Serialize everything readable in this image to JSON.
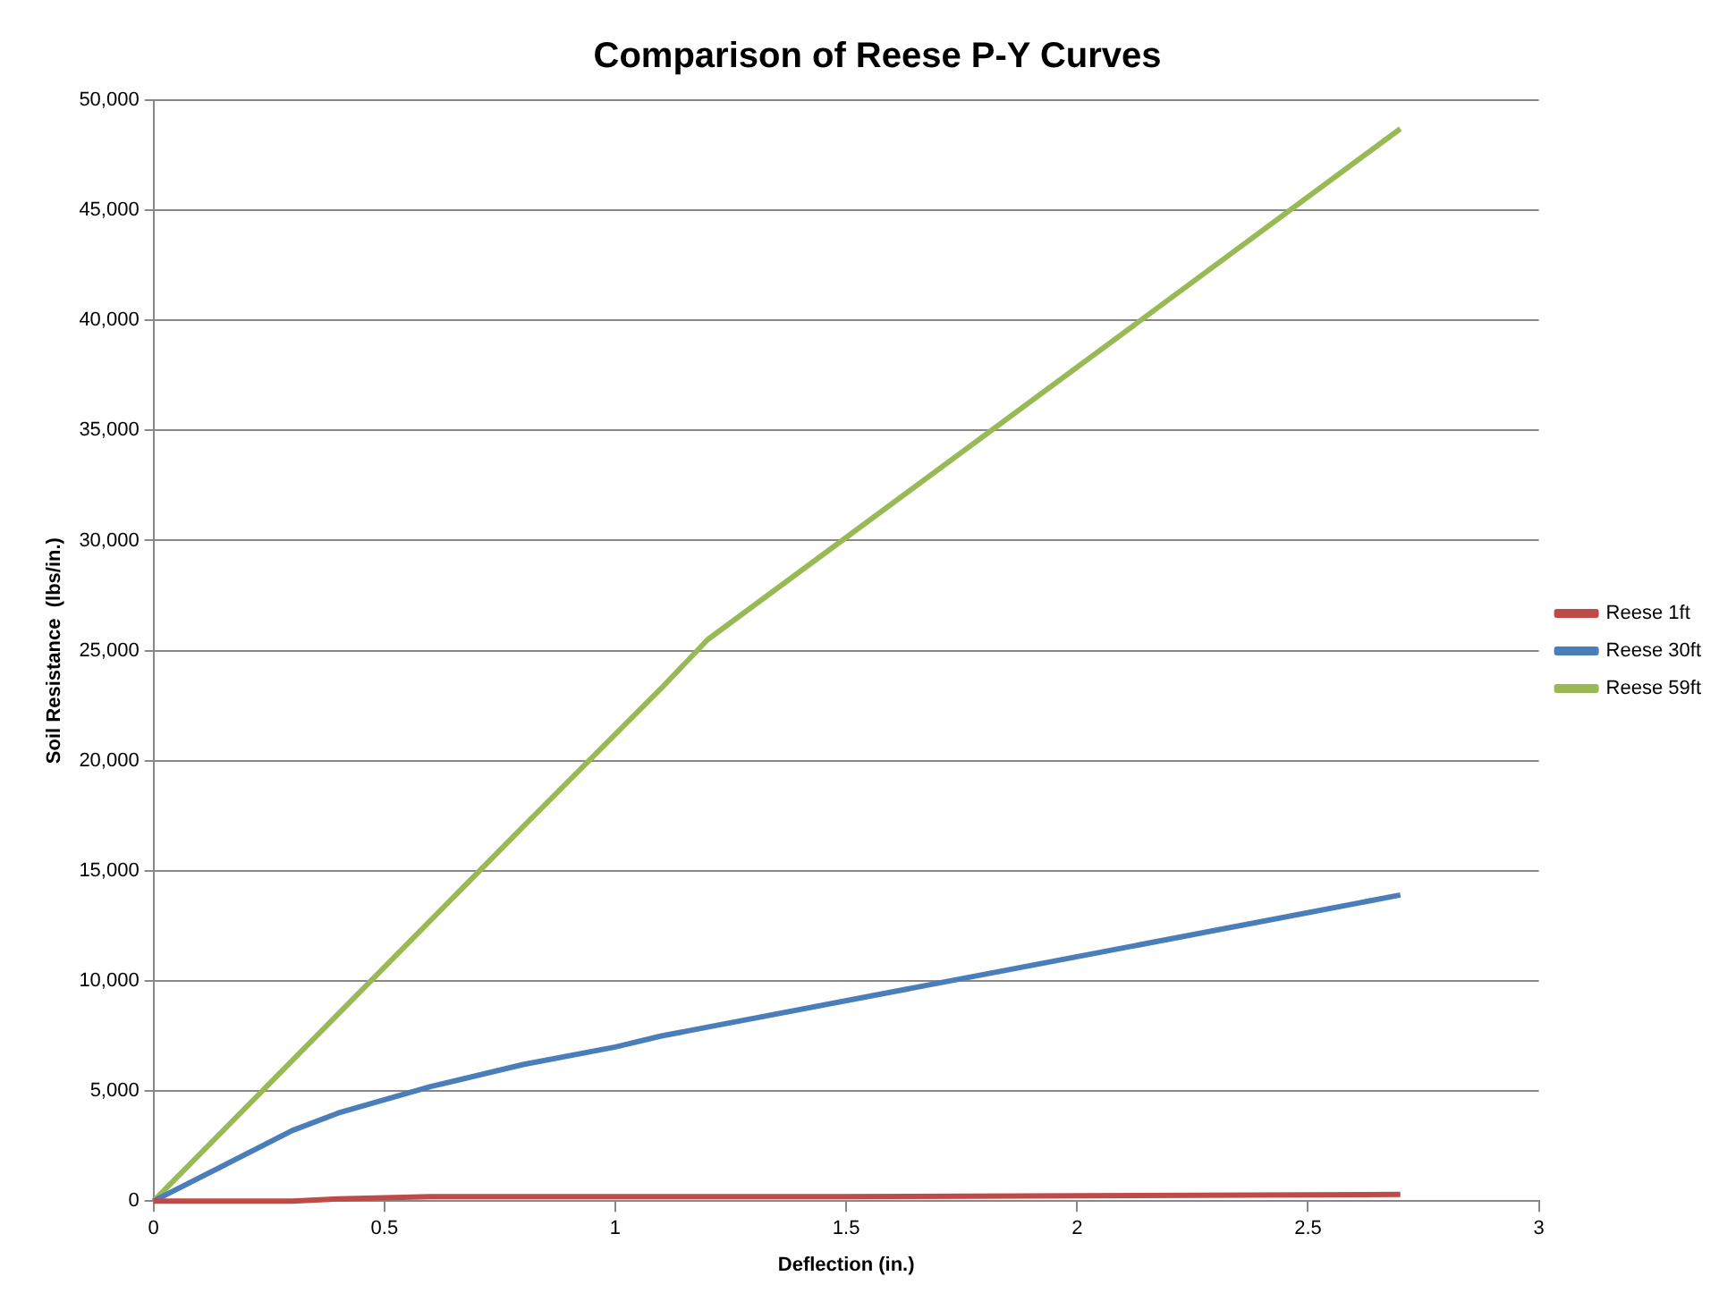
{
  "chart_data": {
    "type": "line",
    "title": "Comparison of Reese P-Y Curves",
    "xlabel": "Deflection (in.)",
    "ylabel": "Soil Resistance  (lbs/in.)",
    "xlim": [
      0,
      3
    ],
    "xticks": [
      0,
      0.5,
      1,
      1.5,
      2,
      2.5,
      3
    ],
    "ylim": [
      0,
      50000
    ],
    "yticks": [
      {
        "value": 0,
        "label": "0"
      },
      {
        "value": 5000,
        "label": "5,000"
      },
      {
        "value": 10000,
        "label": "10,000"
      },
      {
        "value": 15000,
        "label": "15,000"
      },
      {
        "value": 20000,
        "label": "20,000"
      },
      {
        "value": 25000,
        "label": "25,000"
      },
      {
        "value": 30000,
        "label": "30,000"
      },
      {
        "value": 35000,
        "label": "35,000"
      },
      {
        "value": 40000,
        "label": "40,000"
      },
      {
        "value": 45000,
        "label": "45,000"
      },
      {
        "value": 50000,
        "label": "50,000"
      }
    ],
    "grid": "y",
    "legend": "right",
    "marker": "none",
    "series": [
      {
        "name": "Reese 1ft",
        "color": "#be4b48",
        "x": [
          0,
          0.3,
          0.4,
          0.6,
          1.5,
          2.7
        ],
        "values": [
          0,
          0,
          100,
          200,
          200,
          300
        ]
      },
      {
        "name": "Reese 30ft",
        "color": "#4a7ebb",
        "x": [
          0,
          0.3,
          0.4,
          0.6,
          0.8,
          1.0,
          1.1,
          1.2,
          2.7
        ],
        "values": [
          0,
          3200,
          4000,
          5200,
          6200,
          7000,
          7500,
          7900,
          13900
        ]
      },
      {
        "name": "Reese 59ft",
        "color": "#98b954",
        "x": [
          0,
          0.4,
          0.8,
          1.1,
          1.2,
          2.7
        ],
        "values": [
          0,
          8500,
          17000,
          23300,
          25500,
          48700
        ]
      }
    ]
  }
}
